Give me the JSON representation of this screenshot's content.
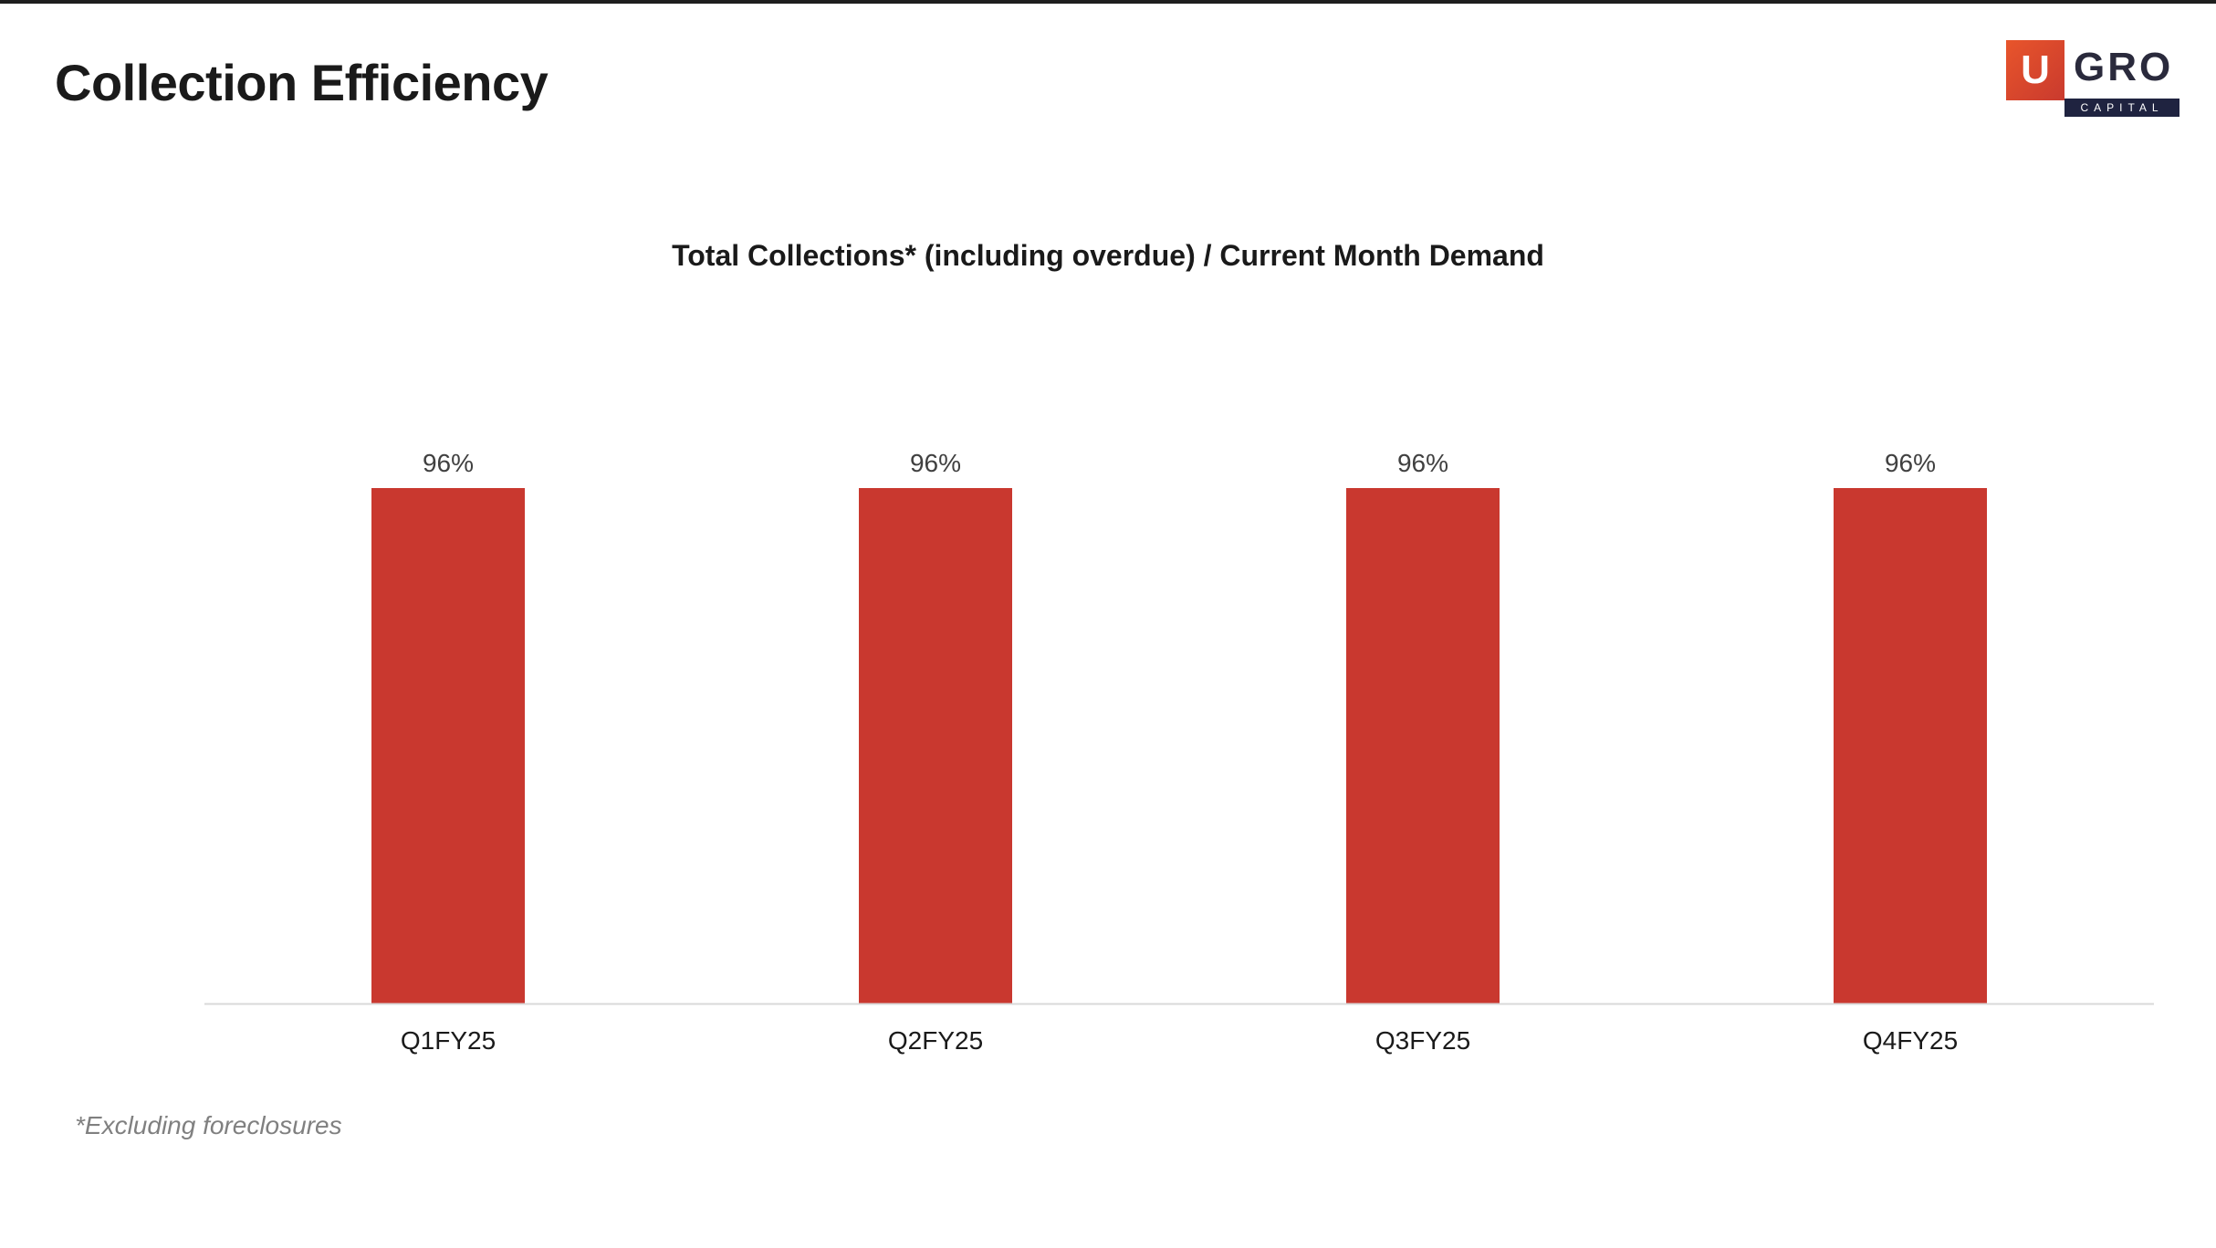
{
  "slide": {
    "title": "Collection Efficiency",
    "footnote": "*Excluding foreclosures"
  },
  "logo": {
    "letter": "U",
    "name": "GRO",
    "sub": "CAPITAL"
  },
  "chart_data": {
    "type": "bar",
    "title": "Total Collections* (including overdue) / Current Month Demand",
    "categories": [
      "Q1FY25",
      "Q2FY25",
      "Q3FY25",
      "Q4FY25"
    ],
    "values": [
      96,
      96,
      96,
      96
    ],
    "data_labels": [
      "96%",
      "96%",
      "96%",
      "96%"
    ],
    "xlabel": "",
    "ylabel": "",
    "ylim": [
      0,
      100
    ],
    "grid": false,
    "bar_color": "#c9382f",
    "axis_color": "#d9d9d9"
  }
}
